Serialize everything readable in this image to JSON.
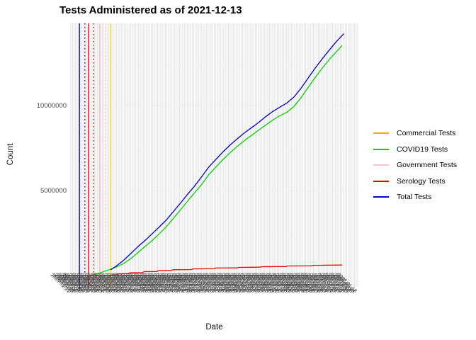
{
  "title": "Tests Administered as of 2021-12-13",
  "chart_data": {
    "type": "line",
    "title": "Tests Administered as of 2021-12-13",
    "xlabel": "Date",
    "ylabel": "Count",
    "ylim": [
      -620000,
      14810000
    ],
    "y_major_ticks": [
      0,
      5000000,
      10000000
    ],
    "y_minor_ticks": [
      2500000,
      7500000,
      12500000
    ],
    "grid": "on",
    "legend_position": "right",
    "x_axis": {
      "start_date": "2020-01-21",
      "end_date": "2022-01-18",
      "tick_step_days": 4,
      "tick_label_format": "YYYY-MM-DD",
      "label_rotation_deg": 45,
      "note": "dense rotated date labels overlap into an illegible band"
    },
    "x_unit": "fraction of date axis (0 = 2020-01-21, 1 = 2022-01-18)",
    "series": [
      {
        "name": "Commercial Tests",
        "color": "#FFA500",
        "points": [
          [
            0.057,
            60000
          ],
          [
            0.094,
            90000
          ]
        ]
      },
      {
        "name": "COVID19 Tests",
        "color": "#00D500",
        "points": [
          [
            0.069,
            50000
          ],
          [
            0.094,
            150000
          ],
          [
            0.119,
            300000
          ],
          [
            0.141,
            420000
          ],
          [
            0.16,
            550000
          ],
          [
            0.185,
            750000
          ],
          [
            0.21,
            1050000
          ],
          [
            0.235,
            1400000
          ],
          [
            0.259,
            1750000
          ],
          [
            0.284,
            2100000
          ],
          [
            0.309,
            2500000
          ],
          [
            0.333,
            2900000
          ],
          [
            0.358,
            3400000
          ],
          [
            0.383,
            3900000
          ],
          [
            0.407,
            4400000
          ],
          [
            0.432,
            4900000
          ],
          [
            0.457,
            5400000
          ],
          [
            0.481,
            5950000
          ],
          [
            0.506,
            6400000
          ],
          [
            0.531,
            6850000
          ],
          [
            0.556,
            7250000
          ],
          [
            0.58,
            7600000
          ],
          [
            0.605,
            7950000
          ],
          [
            0.63,
            8250000
          ],
          [
            0.654,
            8550000
          ],
          [
            0.679,
            8850000
          ],
          [
            0.704,
            9150000
          ],
          [
            0.728,
            9400000
          ],
          [
            0.753,
            9600000
          ],
          [
            0.778,
            9950000
          ],
          [
            0.802,
            10450000
          ],
          [
            0.827,
            11050000
          ],
          [
            0.852,
            11650000
          ],
          [
            0.877,
            12200000
          ],
          [
            0.901,
            12700000
          ],
          [
            0.926,
            13150000
          ],
          [
            0.945,
            13500000
          ]
        ]
      },
      {
        "name": "Government Tests",
        "color": "#FFC0CB",
        "points": [
          [
            0.005,
            40000
          ],
          [
            0.095,
            40000
          ]
        ]
      },
      {
        "name": "Serology Tests",
        "color": "#EE0000",
        "points": [
          [
            0.141,
            80000
          ],
          [
            0.16,
            80000
          ],
          [
            0.165,
            140000
          ],
          [
            0.2,
            150000
          ],
          [
            0.205,
            200000
          ],
          [
            0.25,
            210000
          ],
          [
            0.255,
            270000
          ],
          [
            0.3,
            280000
          ],
          [
            0.305,
            330000
          ],
          [
            0.35,
            340000
          ],
          [
            0.355,
            380000
          ],
          [
            0.42,
            390000
          ],
          [
            0.425,
            430000
          ],
          [
            0.5,
            440000
          ],
          [
            0.505,
            480000
          ],
          [
            0.58,
            490000
          ],
          [
            0.585,
            520000
          ],
          [
            0.66,
            530000
          ],
          [
            0.665,
            560000
          ],
          [
            0.75,
            570000
          ],
          [
            0.755,
            600000
          ],
          [
            0.84,
            610000
          ],
          [
            0.845,
            640000
          ],
          [
            0.945,
            660000
          ]
        ]
      },
      {
        "name": "Total Tests",
        "color": "#0000CD",
        "points": [
          [
            0.141,
            400000
          ],
          [
            0.16,
            620000
          ],
          [
            0.185,
            950000
          ],
          [
            0.21,
            1350000
          ],
          [
            0.235,
            1750000
          ],
          [
            0.259,
            2100000
          ],
          [
            0.284,
            2500000
          ],
          [
            0.309,
            2900000
          ],
          [
            0.333,
            3300000
          ],
          [
            0.358,
            3800000
          ],
          [
            0.383,
            4300000
          ],
          [
            0.407,
            4800000
          ],
          [
            0.432,
            5300000
          ],
          [
            0.457,
            5850000
          ],
          [
            0.481,
            6400000
          ],
          [
            0.506,
            6850000
          ],
          [
            0.531,
            7300000
          ],
          [
            0.556,
            7700000
          ],
          [
            0.58,
            8050000
          ],
          [
            0.605,
            8400000
          ],
          [
            0.63,
            8700000
          ],
          [
            0.654,
            9000000
          ],
          [
            0.679,
            9350000
          ],
          [
            0.704,
            9650000
          ],
          [
            0.728,
            9900000
          ],
          [
            0.753,
            10150000
          ],
          [
            0.778,
            10500000
          ],
          [
            0.802,
            11000000
          ],
          [
            0.827,
            11600000
          ],
          [
            0.852,
            12200000
          ],
          [
            0.877,
            12750000
          ],
          [
            0.901,
            13250000
          ],
          [
            0.926,
            13750000
          ],
          [
            0.951,
            14200000
          ]
        ]
      }
    ],
    "vlines": [
      {
        "x": 0.03,
        "color": "#00008B",
        "style": "solid"
      },
      {
        "x": 0.049,
        "color": "#00008B",
        "style": "dotted"
      },
      {
        "x": 0.062,
        "color": "#DD0000",
        "style": "solid"
      },
      {
        "x": 0.079,
        "color": "#DD0000",
        "style": "dotted"
      },
      {
        "x": 0.101,
        "color": "#FFB6C1",
        "style": "solid"
      },
      {
        "x": 0.12,
        "color": "#FFB6C1",
        "style": "dotted"
      },
      {
        "x": 0.138,
        "color": "#FFD300",
        "style": "solid"
      }
    ],
    "panel_colors": {
      "background": "#FFFFFF",
      "vertical_gridline": "#E3E3E3",
      "major_hgridline": "#EFEFEF",
      "minor_hgridline": "#F4F4F4",
      "tick_label": "#4D4D4D"
    }
  }
}
